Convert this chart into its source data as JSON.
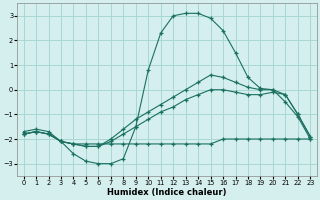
{
  "xlabel": "Humidex (Indice chaleur)",
  "background_color": "#d4efed",
  "grid_color": "#a8d8d4",
  "line_color": "#1a7060",
  "x": [
    0,
    1,
    2,
    3,
    4,
    5,
    6,
    7,
    8,
    9,
    10,
    11,
    12,
    13,
    14,
    15,
    16,
    17,
    18,
    19,
    20,
    21,
    22,
    23
  ],
  "line_peak": [
    -1.8,
    -1.7,
    -1.8,
    -2.1,
    -2.6,
    -2.9,
    -3.0,
    -3.0,
    -2.8,
    -1.5,
    0.8,
    2.3,
    3.0,
    3.1,
    3.1,
    2.9,
    2.4,
    1.5,
    0.5,
    0.05,
    0.0,
    -0.5,
    -1.1,
    -2.0
  ],
  "line_diag1": [
    -1.7,
    -1.6,
    -1.7,
    -2.1,
    -2.2,
    -2.3,
    -2.3,
    -2.0,
    -1.6,
    -1.2,
    -0.9,
    -0.6,
    -0.3,
    0.0,
    0.3,
    0.6,
    0.5,
    0.3,
    0.1,
    0.0,
    0.0,
    -0.2,
    -1.0,
    -1.9
  ],
  "line_diag2": [
    -1.8,
    -1.7,
    -1.8,
    -2.1,
    -2.2,
    -2.3,
    -2.3,
    -2.1,
    -1.8,
    -1.5,
    -1.2,
    -0.9,
    -0.7,
    -0.4,
    -0.2,
    0.0,
    0.0,
    -0.1,
    -0.2,
    -0.2,
    -0.1,
    -0.2,
    -1.0,
    -1.9
  ],
  "line_flat": [
    -1.8,
    -1.7,
    -1.8,
    -2.1,
    -2.2,
    -2.2,
    -2.2,
    -2.2,
    -2.2,
    -2.2,
    -2.2,
    -2.2,
    -2.2,
    -2.2,
    -2.2,
    -2.2,
    -2.0,
    -2.0,
    -2.0,
    -2.0,
    -2.0,
    -2.0,
    -2.0,
    -2.0
  ],
  "ylim": [
    -3.5,
    3.5
  ],
  "xlim": [
    -0.5,
    23.5
  ],
  "yticks": [
    -3,
    -2,
    -1,
    0,
    1,
    2,
    3
  ],
  "xticks": [
    0,
    1,
    2,
    3,
    4,
    5,
    6,
    7,
    8,
    9,
    10,
    11,
    12,
    13,
    14,
    15,
    16,
    17,
    18,
    19,
    20,
    21,
    22,
    23
  ]
}
